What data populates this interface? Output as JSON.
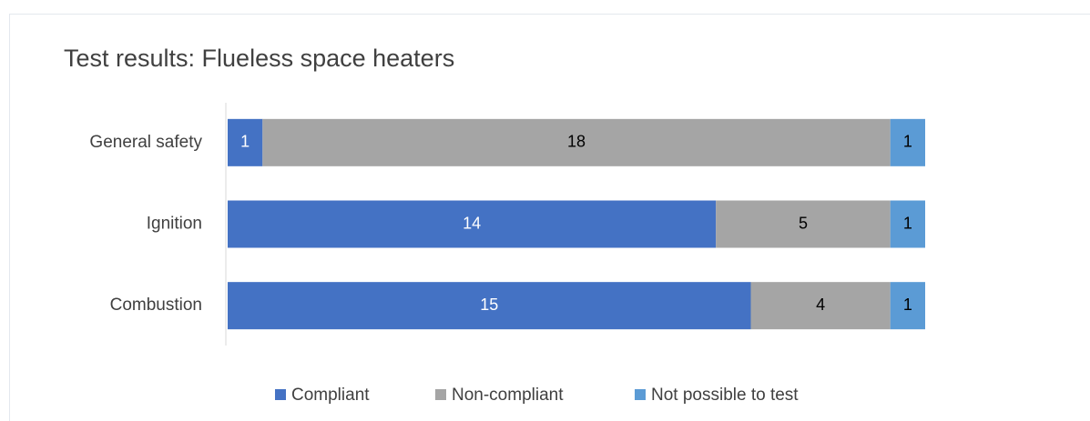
{
  "chart_data": {
    "type": "stacked-bar-horizontal",
    "title": "Test results: Flueless space heaters",
    "categories": [
      "General safety",
      "Ignition",
      "Combustion"
    ],
    "series": [
      {
        "name": "Compliant",
        "color": "#4472c4",
        "label_color": "#ffffff",
        "values": [
          1,
          14,
          15
        ]
      },
      {
        "name": "Non-compliant",
        "color": "#a5a5a5",
        "label_color": "#000000",
        "values": [
          18,
          5,
          4
        ]
      },
      {
        "name": "Not possible to test",
        "color": "#5b9bd5",
        "label_color": "#000000",
        "values": [
          1,
          1,
          1
        ]
      }
    ],
    "xlim": [
      0,
      20
    ],
    "legend": "bottom"
  }
}
